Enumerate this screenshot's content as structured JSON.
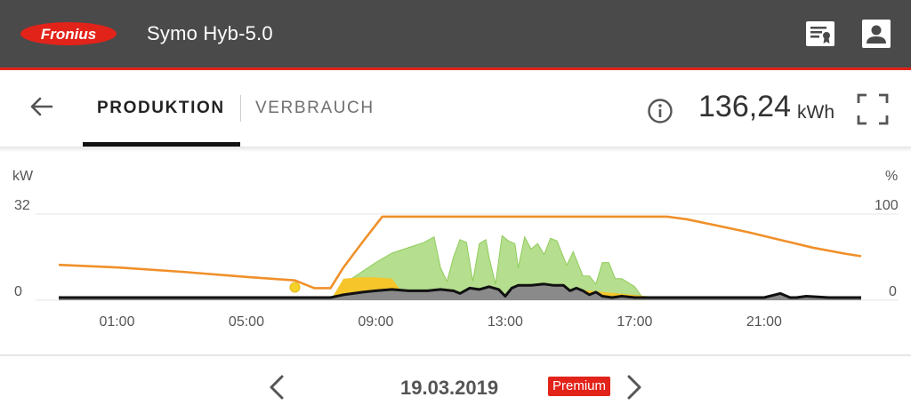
{
  "header": {
    "brand": "Fronius",
    "device_name": "Symo Hyb-5.0",
    "icons": [
      "certificate-icon",
      "profile-icon"
    ]
  },
  "tabs": {
    "back_icon": "arrow-left-icon",
    "items": [
      {
        "label": "PRODUKTION",
        "active": true
      },
      {
        "label": "VERBRAUCH",
        "active": false
      }
    ],
    "info_icon": "info-icon",
    "total_value": "136,24",
    "total_unit": "kWh",
    "fullscreen_icon": "fullscreen-icon"
  },
  "chart_data": {
    "type": "area",
    "left_axis": {
      "label": "kW",
      "ticks": [
        "32",
        "0"
      ],
      "range": [
        0,
        32
      ]
    },
    "right_axis": {
      "label": "%",
      "ticks": [
        "100",
        "0"
      ],
      "range": [
        0,
        100
      ]
    },
    "x_ticks": [
      "01:00",
      "05:00",
      "09:00",
      "13:00",
      "17:00",
      "21:00"
    ],
    "x_range_hours": [
      -0.8,
      24
    ],
    "grid": true,
    "colors": {
      "production": "#a8d87a",
      "battery_charge": "#f5c52a",
      "consumption": "#8a8a8a",
      "consumption_line": "#111111",
      "state_of_charge": "#f0902a"
    },
    "series": [
      {
        "key": "state_of_charge",
        "axis": "right",
        "x": [
          -0.8,
          1,
          3,
          5,
          6.5,
          7.1,
          7.6,
          8.0,
          8.6,
          9.2,
          9.8,
          11,
          12,
          13,
          14,
          15,
          16,
          17,
          18,
          18.6,
          19.5,
          20.5,
          21.5,
          22.5,
          23.5,
          24
        ],
        "values": [
          41,
          38,
          33,
          27,
          23,
          14,
          14,
          38,
          68,
          97,
          97,
          97,
          97,
          97,
          97,
          97,
          97,
          97,
          97,
          94,
          87,
          79,
          70,
          61,
          54,
          51
        ]
      },
      {
        "key": "production",
        "axis": "left",
        "x": [
          7.6,
          8.0,
          8.5,
          9.0,
          9.5,
          10.0,
          10.5,
          10.8,
          11.0,
          11.2,
          11.4,
          11.6,
          11.8,
          12.0,
          12.2,
          12.4,
          12.5,
          12.7,
          12.9,
          13.1,
          13.3,
          13.4,
          13.6,
          13.8,
          14.0,
          14.2,
          14.4,
          14.6,
          14.9,
          15.1,
          15.4,
          15.6,
          15.8,
          16.0,
          16.2,
          16.4,
          16.6,
          17.0,
          17.3
        ],
        "values": [
          0,
          6,
          10,
          14,
          17.5,
          19.5,
          21.5,
          23.5,
          12,
          7,
          16,
          22.5,
          21.5,
          7,
          21,
          22.5,
          16,
          6,
          24,
          22,
          21,
          12,
          23.5,
          19,
          21,
          17,
          23,
          22,
          13,
          18,
          9,
          9,
          6,
          14,
          14,
          8,
          8,
          5,
          0
        ]
      },
      {
        "key": "battery_charge",
        "axis": "left",
        "x": [
          7.1,
          7.6,
          8.0,
          8.5,
          9.0,
          9.5,
          10.0,
          12.0,
          12.4,
          12.6,
          15.0,
          15.2,
          17.4,
          17.6
        ],
        "values": [
          0,
          0,
          8,
          8.5,
          8.5,
          8,
          0,
          0,
          5,
          0,
          0,
          4,
          1.5,
          0
        ]
      },
      {
        "key": "consumption",
        "axis": "left",
        "x": [
          -0.8,
          7.6,
          8.0,
          8.6,
          9.0,
          9.5,
          10.0,
          10.6,
          11.0,
          11.4,
          11.6,
          11.9,
          12.2,
          12.5,
          12.8,
          13.0,
          13.2,
          13.4,
          13.8,
          14.2,
          14.5,
          14.8,
          15.0,
          15.2,
          15.4,
          15.6,
          15.8,
          16.0,
          16.3,
          16.6,
          17.0,
          18.0,
          19.0,
          20.0,
          21.0,
          21.5,
          21.8,
          22.0,
          22.3,
          23.0,
          23.5,
          24
        ],
        "values": [
          1,
          1,
          2,
          3,
          3.5,
          4,
          3.5,
          3.5,
          4,
          3.5,
          2.5,
          4.5,
          4,
          5,
          4,
          1.5,
          4.5,
          5.5,
          5.5,
          6,
          5.5,
          5.5,
          3.5,
          4.5,
          3.5,
          2,
          3,
          1.5,
          1,
          1.5,
          1,
          1,
          1,
          1,
          1,
          2.5,
          1,
          1,
          1.5,
          1,
          1,
          1
        ]
      },
      {
        "key": "battery_point",
        "axis": "left",
        "x": [
          6.5
        ],
        "values": [
          4.8
        ]
      }
    ]
  },
  "navigation": {
    "prev_icon": "chevron-left-icon",
    "date": "19.03.2019",
    "badge": "Premium",
    "next_icon": "chevron-right-icon"
  }
}
